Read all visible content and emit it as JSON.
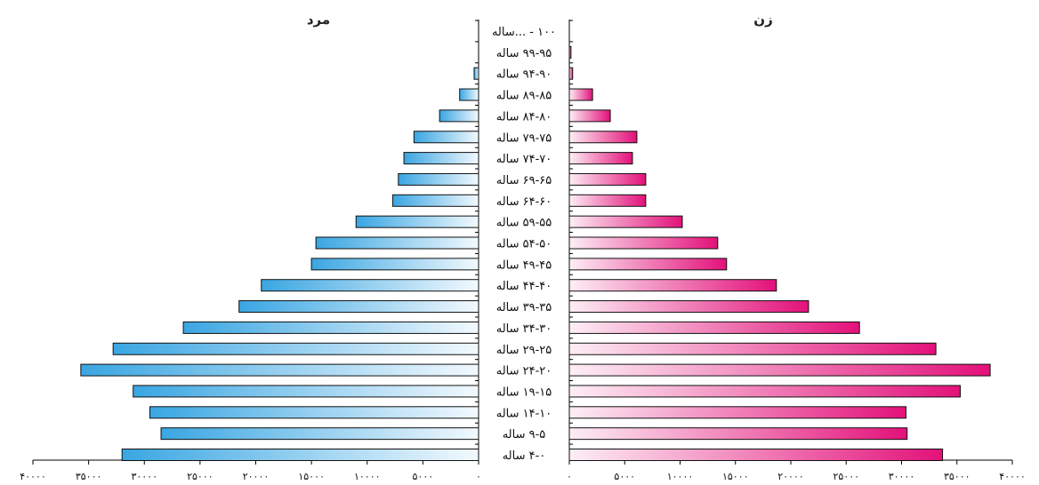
{
  "chart_data": {
    "type": "bar",
    "orientation": "horizontal",
    "layout": "population-pyramid",
    "series": [
      {
        "name": "مرد",
        "side": "left",
        "color": "#3aa6e2",
        "values": [
          320000,
          285000,
          295000,
          310000,
          357000,
          328000,
          265000,
          215000,
          195000,
          150000,
          146000,
          110000,
          77000,
          72000,
          67000,
          58000,
          35000,
          17000,
          4000,
          0,
          0
        ]
      },
      {
        "name": "زن",
        "side": "right",
        "color": "#e3117a",
        "values": [
          337000,
          305000,
          304000,
          353000,
          380000,
          331000,
          262000,
          216000,
          187000,
          142000,
          134000,
          102000,
          69000,
          69000,
          57000,
          61000,
          37000,
          21000,
          3000,
          1500,
          0
        ]
      }
    ],
    "categories": [
      "۴-۰ ساله",
      "۹-۵ ساله",
      "۱۴-۱۰ ساله",
      "۱۹-۱۵ ساله",
      "۲۴-۲۰ ساله",
      "۲۹-۲۵ ساله",
      "۳۴-۳۰ ساله",
      "۳۹-۳۵ ساله",
      "۴۴-۴۰ ساله",
      "۴۹-۴۵ ساله",
      "۵۴-۵۰ ساله",
      "۵۹-۵۵ ساله",
      "۶۴-۶۰ ساله",
      "۶۹-۶۵ ساله",
      "۷۴-۷۰ ساله",
      "۷۹-۷۵ ساله",
      "۸۴-۸۰ ساله",
      "۸۹-۸۵ ساله",
      "۹۴-۹۰ ساله",
      "۹۹-۹۵ ساله",
      "۱۰۰ - ...ساله"
    ],
    "xlim": [
      0,
      400000
    ],
    "left_ticks": [
      "۰",
      "۵۰۰۰",
      "۱۰۰۰۰",
      "۱۵۰۰۰",
      "۲۰۰۰۰",
      "۲۵۰۰۰",
      "۳۰۰۰۰",
      "۳۵۰۰۰",
      "۴۰۰۰۰"
    ],
    "right_ticks": [
      "۰",
      "۵۰۰۰",
      "۱۰۰۰۰",
      "۱۵۰۰۰",
      "۲۰۰۰۰",
      "۲۵۰۰۰",
      "۳۰۰۰۰",
      "۳۵۰۰۰",
      "۴۰۰۰۰"
    ],
    "grid": false
  }
}
